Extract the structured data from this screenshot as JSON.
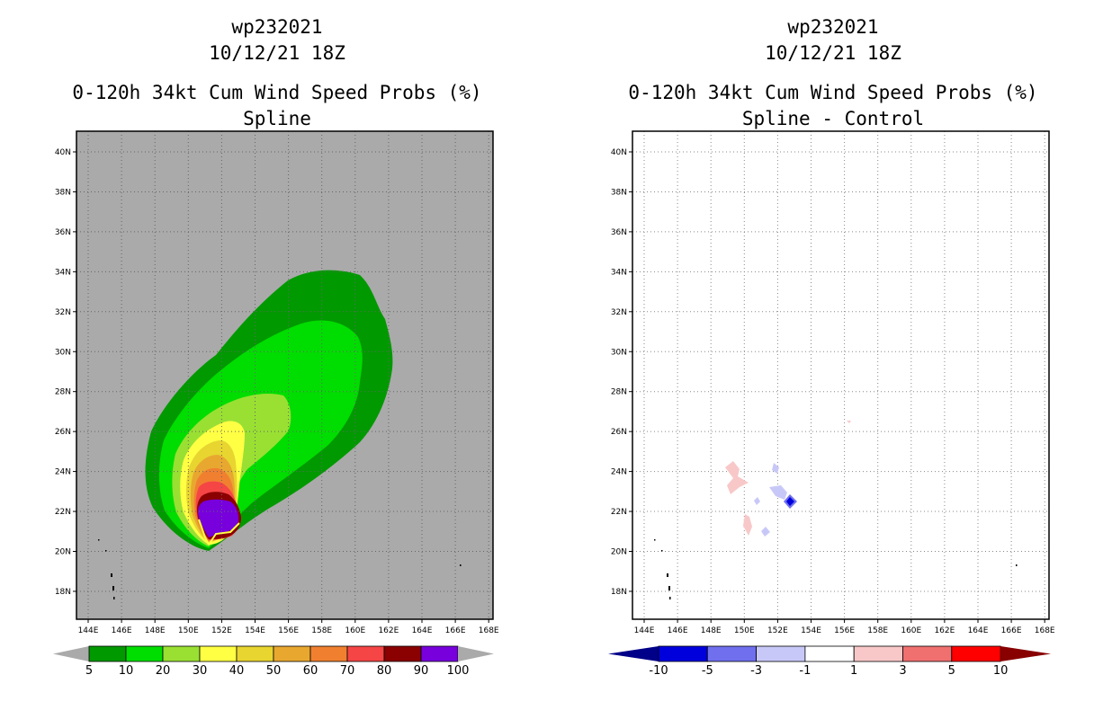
{
  "left_panel": {
    "storm_id": "wp232021",
    "datetime": "10/12/21 18Z",
    "product": "0-120h 34kt Cum Wind Speed Probs (%)",
    "subtitle": "Spline",
    "colorbar": {
      "labels": [
        "5",
        "10",
        "20",
        "30",
        "40",
        "50",
        "60",
        "70",
        "80",
        "90",
        "100"
      ],
      "colors": [
        "#009900",
        "#00dd00",
        "#99e033",
        "#ffff44",
        "#e8d530",
        "#e8a830",
        "#f08030",
        "#f54545",
        "#8b0000",
        "#7700dd"
      ]
    }
  },
  "right_panel": {
    "storm_id": "wp232021",
    "datetime": "10/12/21 18Z",
    "product": "0-120h 34kt Cum Wind Speed Probs (%)",
    "subtitle": "Spline - Control",
    "colorbar": {
      "labels": [
        "-10",
        "-5",
        "-3",
        "-1",
        "1",
        "3",
        "5",
        "10"
      ],
      "colors": [
        "#0000dd",
        "#7070ee",
        "#c8c8f8",
        "#ffffff",
        "#f8c8c8",
        "#f07070",
        "#ff0000"
      ],
      "end_low": "#000088",
      "end_high": "#880000"
    }
  },
  "axes": {
    "lat_labels": [
      "40N",
      "38N",
      "36N",
      "34N",
      "32N",
      "30N",
      "28N",
      "26N",
      "24N",
      "22N",
      "20N",
      "18N"
    ],
    "lon_labels": [
      "144E",
      "146E",
      "148E",
      "150E",
      "152E",
      "154E",
      "156E",
      "158E",
      "160E",
      "162E",
      "164E",
      "166E",
      "168E"
    ]
  },
  "colors": {
    "map_background": "#aaaaaa",
    "plot_border": "#000000"
  }
}
